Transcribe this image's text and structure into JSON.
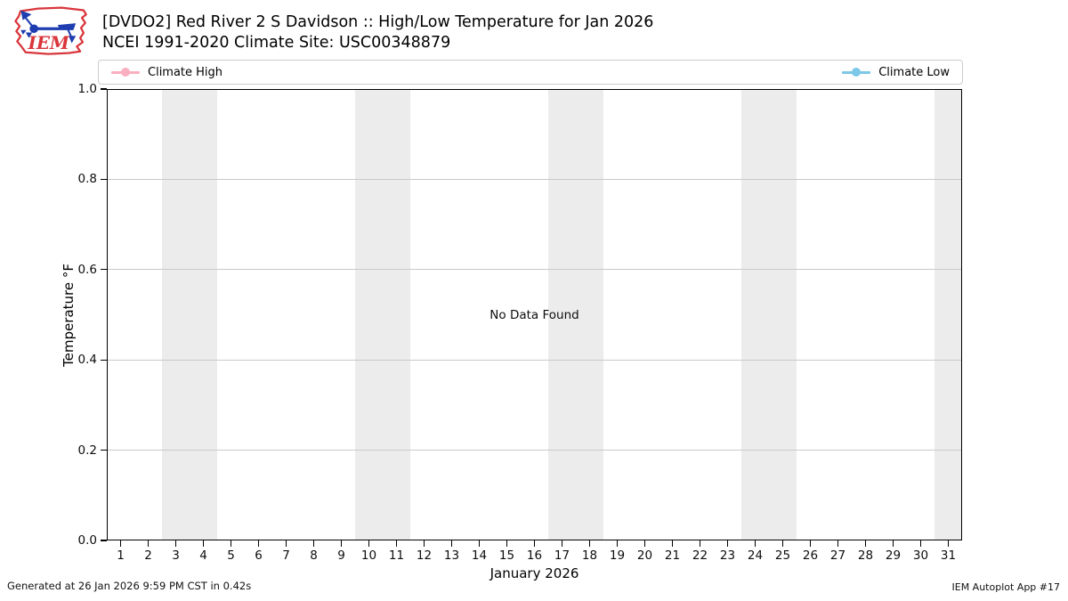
{
  "header": {
    "logo_text": "IEM",
    "title": "[DVDO2] Red River 2 S Davidson :: High/Low Temperature for Jan 2026",
    "subtitle": "NCEI 1991-2020 Climate Site: USC00348879"
  },
  "legend": {
    "items": [
      {
        "label": "Climate High",
        "color": "#f9afbf"
      },
      {
        "label": "Climate Low",
        "color": "#7cc8e8"
      }
    ]
  },
  "chart_data": {
    "type": "line",
    "title": "[DVDO2] Red River 2 S Davidson :: High/Low Temperature for Jan 2026",
    "subtitle": "NCEI 1991-2020 Climate Site: USC00348879",
    "xlabel": "January 2026",
    "ylabel": "Temperature °F",
    "xlim": [
      0.5,
      31.5
    ],
    "ylim": [
      0.0,
      1.0
    ],
    "x_ticks": [
      1,
      2,
      3,
      4,
      5,
      6,
      7,
      8,
      9,
      10,
      11,
      12,
      13,
      14,
      15,
      16,
      17,
      18,
      19,
      20,
      21,
      22,
      23,
      24,
      25,
      26,
      27,
      28,
      29,
      30,
      31
    ],
    "y_ticks": [
      "0.0",
      "0.2",
      "0.4",
      "0.6",
      "0.8",
      "1.0"
    ],
    "grid": "horizontal-only",
    "legend_position": "top full-width, entries at far left and far right",
    "series": [
      {
        "name": "Climate High",
        "color": "#f9afbf",
        "marker": "circle",
        "x": [],
        "values": []
      },
      {
        "name": "Climate Low",
        "color": "#7cc8e8",
        "marker": "circle",
        "x": [],
        "values": []
      }
    ],
    "annotations": [
      {
        "text": "No Data Found",
        "x": 16.0,
        "y": 0.5
      }
    ],
    "weekend_bands_x": [
      [
        2.5,
        4.5
      ],
      [
        9.5,
        11.5
      ],
      [
        16.5,
        18.5
      ],
      [
        23.5,
        25.5
      ],
      [
        30.5,
        31.5
      ]
    ],
    "band_color": "#ececec"
  },
  "footer": {
    "left": "Generated at 26 Jan 2026 9:59 PM CST in 0.42s",
    "right": "IEM Autoplot App #17"
  }
}
